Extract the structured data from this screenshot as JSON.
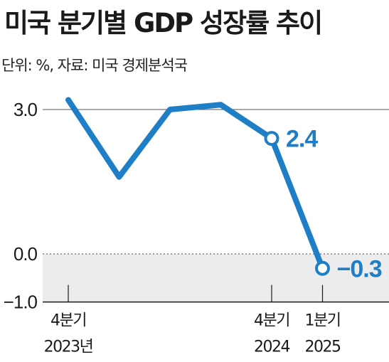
{
  "title": "미국 분기별 GDP 성장률 추이",
  "subtitle": "단위: %, 자료: 미국 경제분석국",
  "colors": {
    "line": "#1f7fc6",
    "negative_band": "#ececec",
    "axis": "#1a1a1a"
  },
  "chart_data": {
    "type": "line",
    "title": "미국 분기별 GDP 성장률 추이",
    "unit": "%",
    "source": "미국 경제분석국",
    "ylim": [
      -1.0,
      3.5
    ],
    "yticks": [
      {
        "value": 3.0,
        "label": "3.0"
      },
      {
        "value": 0.0,
        "label": "0.0"
      },
      {
        "value": -1.0,
        "label": "−1.0"
      }
    ],
    "x": [
      "2023Q4",
      "2024Q1",
      "2024Q2",
      "2024Q3",
      "2024Q4",
      "2025Q1"
    ],
    "values": [
      3.2,
      1.6,
      3.0,
      3.1,
      2.4,
      -0.3
    ],
    "xticks": [
      {
        "index": 0,
        "line1": "4분기",
        "line2": "2023년"
      },
      {
        "index": 4,
        "line1": "4분기",
        "line2": "2024"
      },
      {
        "index": 5,
        "line1": "1분기",
        "line2": "2025"
      }
    ],
    "data_labels": [
      {
        "index": 4,
        "text": "2.4"
      },
      {
        "index": 5,
        "text": "−0.3"
      }
    ],
    "negative_region_shaded": true
  }
}
